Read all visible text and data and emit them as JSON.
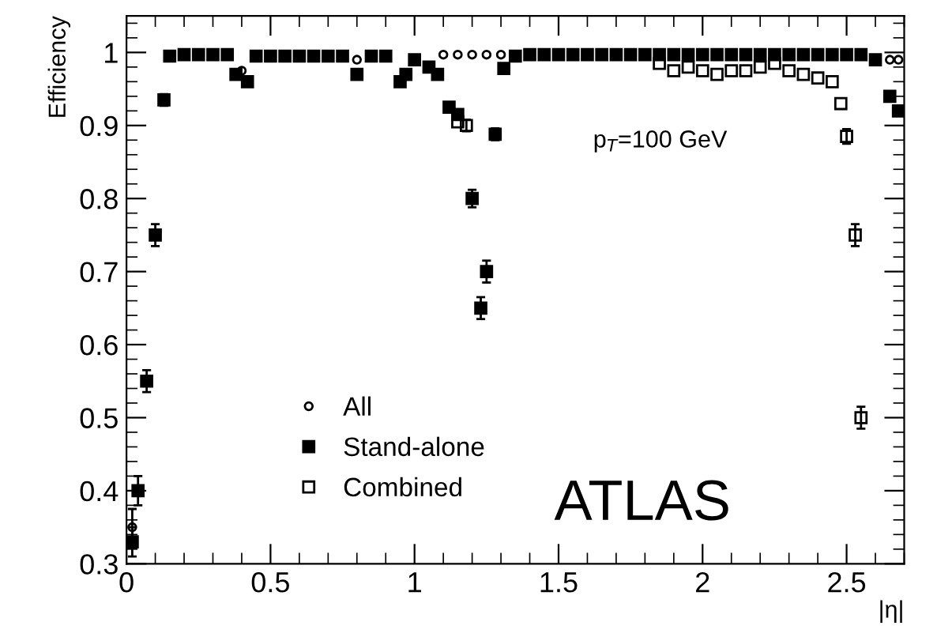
{
  "chart_data": {
    "type": "scatter",
    "xlabel": "|η|",
    "ylabel": "Efficiency",
    "annotations": [
      "p$_{T}$=100 GeV",
      "ATLAS"
    ],
    "xlim": [
      0,
      2.7
    ],
    "ylim": [
      0.3,
      1.05
    ],
    "xticks": [
      0,
      0.5,
      1,
      1.5,
      2,
      2.5
    ],
    "yticks": [
      0.3,
      0.4,
      0.5,
      0.6,
      0.7,
      0.8,
      0.9,
      1
    ],
    "grid": false,
    "legend": "bottom left",
    "series": [
      {
        "name": "All",
        "color": "#000000",
        "marker": "circle",
        "x": [
          0.02,
          0.4,
          0.8,
          1.1,
          1.15,
          1.2,
          1.25,
          1.3,
          2.65,
          2.68
        ],
        "values": [
          0.35,
          0.975,
          0.99,
          0.997,
          0.997,
          0.997,
          0.997,
          0.997,
          0.99,
          0.99
        ],
        "errors": [
          0.025,
          null,
          null,
          null,
          null,
          null,
          null,
          null,
          null,
          null
        ]
      },
      {
        "name": "Stand-alone",
        "color": "#000000",
        "marker": "square",
        "x": [
          0.02,
          0.04,
          0.07,
          0.1,
          0.13,
          0.15,
          0.2,
          0.25,
          0.3,
          0.35,
          0.38,
          0.42,
          0.45,
          0.5,
          0.55,
          0.6,
          0.65,
          0.7,
          0.75,
          0.8,
          0.85,
          0.9,
          0.95,
          0.97,
          1.0,
          1.05,
          1.08,
          1.12,
          1.15,
          1.2,
          1.23,
          1.25,
          1.28,
          1.31,
          1.35,
          1.4,
          1.45,
          1.5,
          1.55,
          1.6,
          1.65,
          1.7,
          1.75,
          1.8,
          1.85,
          1.9,
          1.95,
          2.0,
          2.05,
          2.1,
          2.15,
          2.2,
          2.25,
          2.3,
          2.35,
          2.4,
          2.45,
          2.5,
          2.55,
          2.6,
          2.65,
          2.68
        ],
        "values": [
          0.33,
          0.4,
          0.55,
          0.75,
          0.935,
          0.995,
          0.997,
          0.997,
          0.997,
          0.997,
          0.97,
          0.96,
          0.995,
          0.995,
          0.995,
          0.995,
          0.995,
          0.995,
          0.995,
          0.97,
          0.995,
          0.995,
          0.96,
          0.97,
          0.99,
          0.98,
          0.97,
          0.925,
          0.915,
          0.8,
          0.65,
          0.7,
          0.888,
          0.978,
          0.995,
          0.997,
          0.997,
          0.997,
          0.997,
          0.997,
          0.997,
          0.997,
          0.997,
          0.997,
          0.997,
          0.997,
          0.997,
          0.997,
          0.997,
          0.997,
          0.997,
          0.997,
          0.997,
          0.997,
          0.997,
          0.997,
          0.997,
          0.997,
          0.997,
          0.99,
          0.94,
          0.92
        ],
        "errors": [
          0.02,
          0.02,
          0.015,
          0.015,
          0.008,
          null,
          null,
          null,
          null,
          null,
          null,
          null,
          null,
          null,
          null,
          null,
          null,
          null,
          null,
          null,
          null,
          null,
          null,
          null,
          null,
          null,
          null,
          null,
          null,
          0.012,
          0.015,
          0.015,
          0.008,
          null,
          null,
          null,
          null,
          null,
          null,
          null,
          null,
          null,
          null,
          null,
          null,
          null,
          null,
          null,
          null,
          null,
          null,
          null,
          null,
          null,
          null,
          null,
          null,
          null,
          null,
          null,
          null,
          null
        ]
      },
      {
        "name": "Combined",
        "color": "#000000",
        "marker": "square",
        "x": [
          1.15,
          1.18,
          1.85,
          1.9,
          1.95,
          2.0,
          2.05,
          2.1,
          2.15,
          2.2,
          2.25,
          2.3,
          2.35,
          2.4,
          2.45,
          2.48,
          2.5,
          2.53,
          2.55
        ],
        "values": [
          0.905,
          0.9,
          0.985,
          0.975,
          0.98,
          0.975,
          0.97,
          0.975,
          0.975,
          0.98,
          0.985,
          0.975,
          0.97,
          0.965,
          0.96,
          0.93,
          0.885,
          0.75,
          0.5
        ],
        "errors": [
          null,
          0.008,
          null,
          null,
          null,
          null,
          null,
          null,
          null,
          null,
          null,
          null,
          null,
          null,
          null,
          null,
          0.01,
          0.015,
          0.015
        ]
      }
    ]
  }
}
